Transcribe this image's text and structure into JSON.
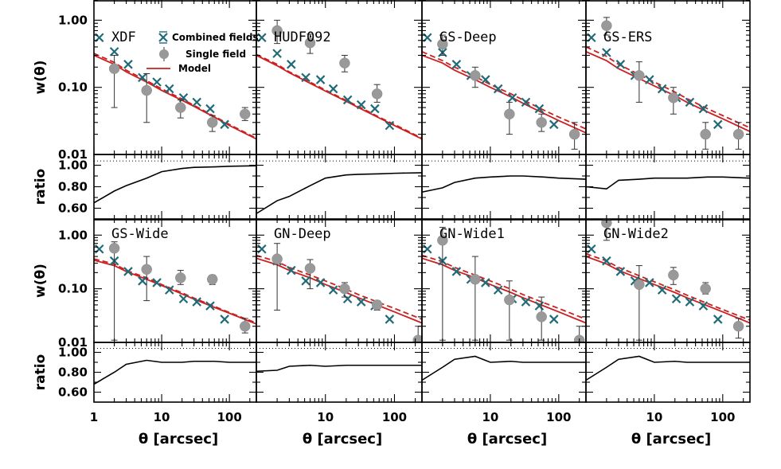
{
  "chart_data": {
    "type": "scatter",
    "layout": "grid 2 rows of 4 panels, each panel with w(theta) plot and ratio subplot",
    "xlabel": "θ [arcsec]",
    "ylabel_main": "w(θ)",
    "ylabel_ratio": "ratio",
    "x_scale": "log",
    "y_scale_main": "log",
    "xlim": [
      1,
      250
    ],
    "ylim_main": [
      0.01,
      2.0
    ],
    "ylim_ratio": [
      0.5,
      1.1
    ],
    "x_ticks": [
      "1",
      "10",
      "100"
    ],
    "y_ticks_main": [
      "0.01",
      "0.10",
      "1.00"
    ],
    "y_ticks_ratio": [
      "0.60",
      "0.80",
      "1.00"
    ],
    "ratio_reference": 1.04,
    "colors": {
      "combined": "#1f6b78",
      "single": "#999999",
      "model": "#cc2020",
      "ratio_line": "#000000"
    },
    "legend": {
      "combined": "Combined fields",
      "single": "Single field",
      "model": "Model"
    },
    "model_points": [
      1,
      2,
      3,
      6,
      10,
      20,
      30,
      60,
      100,
      250
    ],
    "panels": [
      {
        "name": "XDF",
        "combined": {
          "x": [
            1.2,
            2.0,
            3.2,
            5.2,
            8.5,
            13,
            21,
            33,
            52,
            85
          ],
          "y": [
            0.55,
            0.34,
            0.22,
            0.14,
            0.12,
            0.095,
            0.07,
            0.06,
            0.048,
            0.028
          ]
        },
        "single": {
          "x": [
            2.0,
            6.0,
            19,
            56,
            170
          ],
          "y": [
            0.19,
            0.09,
            0.05,
            0.03,
            0.04
          ],
          "err_low": [
            0.05,
            0.03,
            0.035,
            0.022,
            0.032
          ],
          "err_high": [
            0.3,
            0.16,
            0.065,
            0.038,
            0.05
          ]
        },
        "model_solid": [
          0.3,
          0.22,
          0.17,
          0.12,
          0.09,
          0.064,
          0.052,
          0.036,
          0.027,
          0.017
        ],
        "model_dashed": [
          0.32,
          0.235,
          0.18,
          0.126,
          0.095,
          0.067,
          0.054,
          0.037,
          0.028,
          0.0175
        ],
        "ratio": {
          "x": [
            1,
            2,
            3,
            6,
            10,
            20,
            30,
            60,
            100,
            250
          ],
          "y": [
            0.65,
            0.76,
            0.81,
            0.88,
            0.94,
            0.97,
            0.98,
            0.985,
            0.99,
            0.995
          ]
        }
      },
      {
        "name": "HUDF092",
        "combined": {
          "x": [
            1.2,
            2.0,
            3.2,
            5.2,
            8.5,
            13,
            21,
            33,
            52,
            85
          ],
          "y": [
            0.55,
            0.32,
            0.22,
            0.14,
            0.13,
            0.095,
            0.065,
            0.055,
            0.048,
            0.027
          ]
        },
        "single": {
          "x": [
            2.0,
            6.0,
            19,
            56
          ],
          "y": [
            0.7,
            0.46,
            0.23,
            0.08
          ],
          "err_low": [
            0.45,
            0.32,
            0.17,
            0.06
          ],
          "err_high": [
            1.0,
            0.62,
            0.3,
            0.11
          ]
        },
        "model_solid": [
          0.3,
          0.21,
          0.165,
          0.115,
          0.088,
          0.062,
          0.05,
          0.035,
          0.027,
          0.017
        ],
        "model_dashed": [
          0.31,
          0.22,
          0.17,
          0.12,
          0.091,
          0.064,
          0.052,
          0.036,
          0.028,
          0.0175
        ],
        "ratio": {
          "x": [
            1,
            2,
            3,
            6,
            10,
            20,
            30,
            60,
            100,
            250
          ],
          "y": [
            0.55,
            0.67,
            0.71,
            0.81,
            0.88,
            0.91,
            0.915,
            0.92,
            0.925,
            0.93
          ]
        }
      },
      {
        "name": "GS-Deep",
        "combined": {
          "x": [
            1.2,
            2.0,
            3.2,
            5.2,
            8.5,
            13,
            21,
            33,
            52,
            85
          ],
          "y": [
            0.55,
            0.33,
            0.22,
            0.15,
            0.13,
            0.095,
            0.07,
            0.06,
            0.048,
            0.028
          ]
        },
        "single": {
          "x": [
            2.0,
            6.0,
            19,
            56,
            170
          ],
          "y": [
            0.44,
            0.15,
            0.04,
            0.03,
            0.02
          ],
          "err_low": [
            0.3,
            0.1,
            0.02,
            0.022,
            0.012
          ],
          "err_high": [
            0.6,
            0.2,
            0.06,
            0.04,
            0.03
          ]
        },
        "model_solid": [
          0.3,
          0.23,
          0.18,
          0.13,
          0.1,
          0.072,
          0.058,
          0.041,
          0.032,
          0.021
        ],
        "model_dashed": [
          0.34,
          0.25,
          0.2,
          0.145,
          0.11,
          0.08,
          0.065,
          0.046,
          0.036,
          0.024
        ],
        "ratio": {
          "x": [
            1,
            2,
            3,
            6,
            10,
            20,
            30,
            60,
            100,
            250
          ],
          "y": [
            0.75,
            0.79,
            0.84,
            0.88,
            0.89,
            0.9,
            0.9,
            0.89,
            0.88,
            0.87
          ]
        }
      },
      {
        "name": "GS-ERS",
        "combined": {
          "x": [
            1.2,
            2.0,
            3.2,
            5.2,
            8.5,
            13,
            21,
            33,
            52,
            85
          ],
          "y": [
            0.55,
            0.33,
            0.22,
            0.15,
            0.13,
            0.095,
            0.07,
            0.06,
            0.048,
            0.028
          ]
        },
        "single": {
          "x": [
            2.0,
            6.0,
            19,
            56,
            170
          ],
          "y": [
            0.83,
            0.15,
            0.07,
            0.02,
            0.02
          ],
          "err_low": [
            0.6,
            0.06,
            0.04,
            0.012,
            0.012
          ],
          "err_high": [
            1.1,
            0.24,
            0.1,
            0.03,
            0.03
          ]
        },
        "model_solid": [
          0.34,
          0.25,
          0.19,
          0.135,
          0.105,
          0.075,
          0.06,
          0.043,
          0.034,
          0.022
        ],
        "model_dashed": [
          0.4,
          0.29,
          0.22,
          0.155,
          0.12,
          0.085,
          0.068,
          0.048,
          0.038,
          0.025
        ],
        "ratio": {
          "x": [
            1,
            2,
            3,
            6,
            10,
            20,
            30,
            60,
            100,
            250
          ],
          "y": [
            0.8,
            0.78,
            0.86,
            0.87,
            0.88,
            0.88,
            0.88,
            0.89,
            0.89,
            0.88
          ]
        }
      },
      {
        "name": "GS-Wide",
        "combined": {
          "x": [
            1.2,
            2.0,
            3.2,
            5.2,
            8.5,
            13,
            21,
            33,
            52,
            85
          ],
          "y": [
            0.55,
            0.33,
            0.21,
            0.14,
            0.13,
            0.095,
            0.065,
            0.057,
            0.048,
            0.027
          ]
        },
        "single": {
          "x": [
            2.0,
            6.0,
            19,
            56,
            170
          ],
          "y": [
            0.57,
            0.23,
            0.16,
            0.15,
            0.02
          ],
          "err_low": [
            0.011,
            0.06,
            0.12,
            0.12,
            0.015
          ],
          "err_high": [
            0.75,
            0.4,
            0.22,
            0.18,
            0.028
          ]
        },
        "model_solid": [
          0.34,
          0.27,
          0.21,
          0.15,
          0.115,
          0.08,
          0.064,
          0.045,
          0.035,
          0.022
        ],
        "model_dashed": [
          0.36,
          0.29,
          0.22,
          0.16,
          0.12,
          0.084,
          0.067,
          0.047,
          0.036,
          0.023
        ],
        "ratio": {
          "x": [
            1,
            2,
            3,
            6,
            10,
            20,
            30,
            60,
            100,
            250
          ],
          "y": [
            0.68,
            0.8,
            0.88,
            0.92,
            0.9,
            0.9,
            0.91,
            0.91,
            0.9,
            0.9
          ]
        }
      },
      {
        "name": "GN-Deep",
        "combined": {
          "x": [
            1.2,
            2.0,
            3.2,
            5.2,
            8.5,
            13,
            21,
            33,
            52,
            85
          ],
          "y": [
            0.55,
            0.33,
            0.22,
            0.14,
            0.13,
            0.095,
            0.065,
            0.057,
            0.048,
            0.027
          ]
        },
        "single": {
          "x": [
            2.0,
            6.0,
            19,
            56,
            220
          ],
          "y": [
            0.36,
            0.24,
            0.1,
            0.05,
            0.011
          ],
          "err_low": [
            0.04,
            0.1,
            0.07,
            0.04,
            0.008
          ],
          "err_high": [
            0.7,
            0.35,
            0.13,
            0.06,
            0.02
          ]
        },
        "model_solid": [
          0.37,
          0.28,
          0.22,
          0.16,
          0.12,
          0.085,
          0.068,
          0.048,
          0.037,
          0.023
        ],
        "model_dashed": [
          0.42,
          0.32,
          0.25,
          0.18,
          0.14,
          0.098,
          0.078,
          0.055,
          0.043,
          0.027
        ],
        "ratio": {
          "x": [
            1,
            2,
            3,
            6,
            10,
            20,
            30,
            60,
            100,
            250
          ],
          "y": [
            0.81,
            0.82,
            0.86,
            0.87,
            0.86,
            0.87,
            0.87,
            0.87,
            0.87,
            0.87
          ]
        }
      },
      {
        "name": "GN-Wide1",
        "combined": {
          "x": [
            1.2,
            2.0,
            3.2,
            5.2,
            8.5,
            13,
            21,
            33,
            52,
            85
          ],
          "y": [
            0.55,
            0.33,
            0.21,
            0.15,
            0.13,
            0.095,
            0.065,
            0.057,
            0.048,
            0.027
          ]
        },
        "single": {
          "x": [
            2.0,
            6.0,
            19,
            56,
            200
          ],
          "y": [
            0.8,
            0.15,
            0.062,
            0.03,
            0.011
          ],
          "err_low": [
            0.011,
            0.011,
            0.011,
            0.011,
            0.008
          ],
          "err_high": [
            1.4,
            0.4,
            0.14,
            0.07,
            0.02
          ]
        },
        "model_solid": [
          0.37,
          0.28,
          0.22,
          0.16,
          0.12,
          0.085,
          0.068,
          0.048,
          0.037,
          0.023
        ],
        "model_dashed": [
          0.42,
          0.32,
          0.25,
          0.18,
          0.14,
          0.098,
          0.078,
          0.055,
          0.043,
          0.027
        ],
        "ratio": {
          "x": [
            1,
            2,
            3,
            6,
            10,
            20,
            30,
            60,
            100,
            250
          ],
          "y": [
            0.72,
            0.85,
            0.93,
            0.96,
            0.9,
            0.91,
            0.9,
            0.9,
            0.9,
            0.9
          ]
        }
      },
      {
        "name": "GN-Wide2",
        "combined": {
          "x": [
            1.2,
            2.0,
            3.2,
            5.2,
            8.5,
            13,
            21,
            33,
            52,
            85
          ],
          "y": [
            0.55,
            0.33,
            0.21,
            0.14,
            0.13,
            0.095,
            0.065,
            0.057,
            0.048,
            0.027
          ]
        },
        "single": {
          "x": [
            2.0,
            6.0,
            19,
            56,
            170
          ],
          "y": [
            1.7,
            0.12,
            0.18,
            0.1,
            0.02
          ],
          "err_low": [
            0.8,
            0.011,
            0.12,
            0.08,
            0.012
          ],
          "err_high": [
            2.5,
            0.27,
            0.25,
            0.13,
            0.028
          ]
        },
        "model_solid": [
          0.4,
          0.29,
          0.22,
          0.155,
          0.12,
          0.085,
          0.068,
          0.048,
          0.037,
          0.023
        ],
        "model_dashed": [
          0.45,
          0.33,
          0.25,
          0.175,
          0.135,
          0.095,
          0.076,
          0.053,
          0.041,
          0.026
        ],
        "ratio": {
          "x": [
            1,
            2,
            3,
            6,
            10,
            20,
            30,
            60,
            100,
            250
          ],
          "y": [
            0.72,
            0.85,
            0.93,
            0.96,
            0.9,
            0.91,
            0.9,
            0.9,
            0.9,
            0.9
          ]
        }
      }
    ]
  }
}
